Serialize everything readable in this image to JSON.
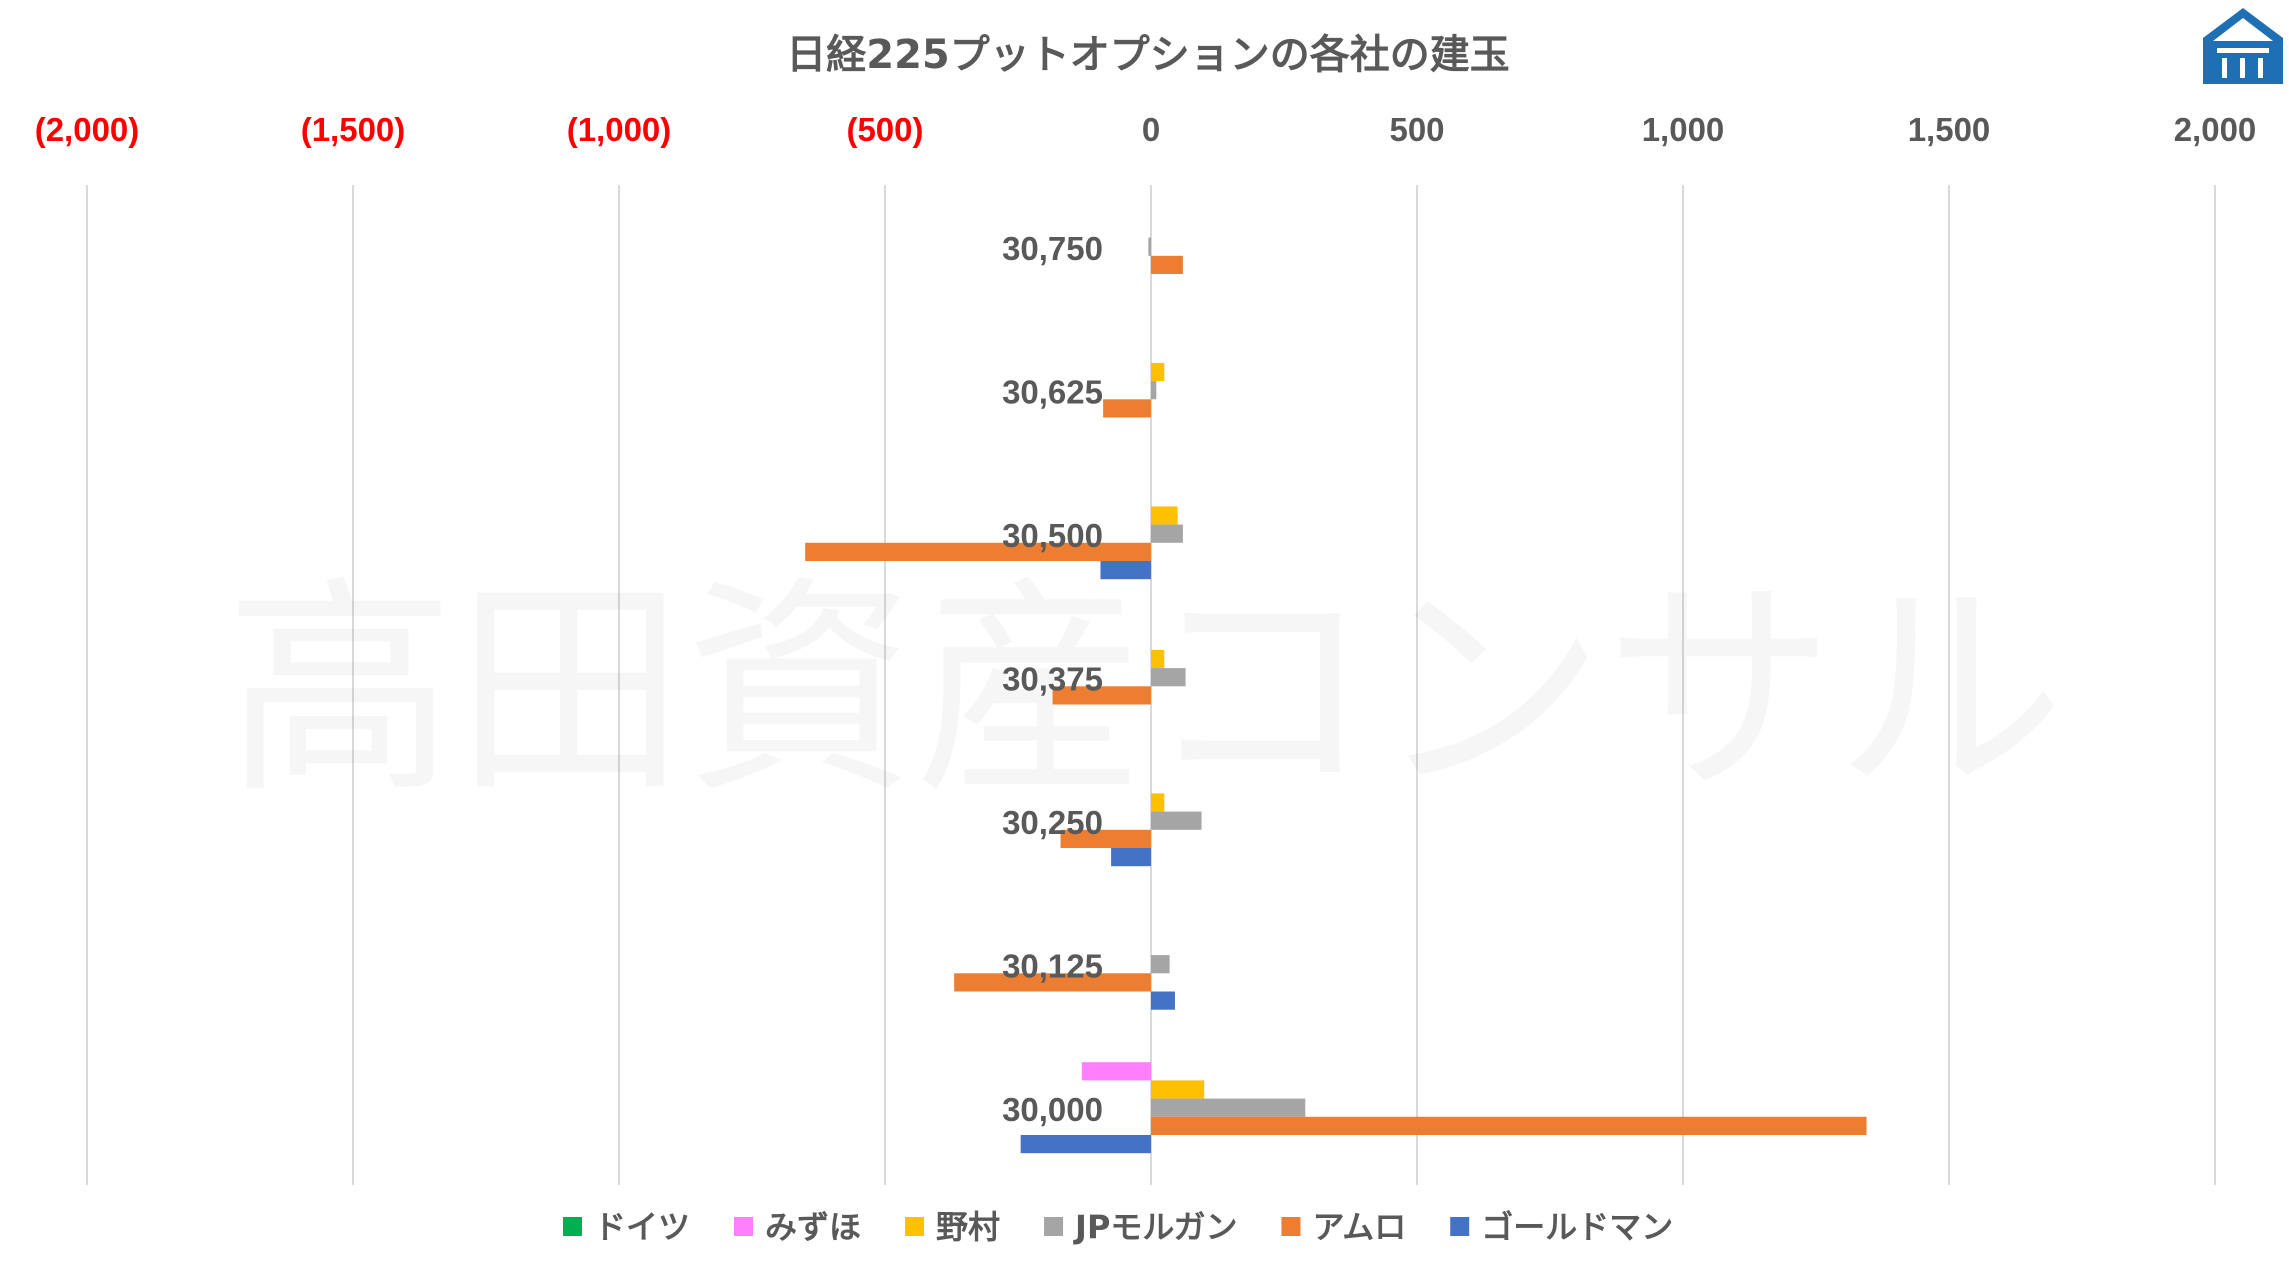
{
  "chart_data": {
    "type": "bar",
    "orientation": "horizontal",
    "title": "日経225プットオプションの各社の建玉",
    "watermark": "高田資産コンサル",
    "logo": "takata-logo-icon",
    "xlim": [
      -2000,
      2000
    ],
    "x_ticks": [
      {
        "value": -2000,
        "label": "(2,000)"
      },
      {
        "value": -1500,
        "label": "(1,500)"
      },
      {
        "value": -1000,
        "label": "(1,000)"
      },
      {
        "value": -500,
        "label": "(500)"
      },
      {
        "value": 0,
        "label": "0"
      },
      {
        "value": 500,
        "label": "500"
      },
      {
        "value": 1000,
        "label": "1,000"
      },
      {
        "value": 1500,
        "label": "1,500"
      },
      {
        "value": 2000,
        "label": "2,000"
      }
    ],
    "colors": {
      "negative_tick": "#ff0000",
      "positive_tick": "#595959",
      "gridline": "#d9d9d9",
      "logo": "#1f6fb5"
    },
    "grid": true,
    "legend_position": "bottom",
    "categories": [
      "30,750",
      "30,625",
      "30,500",
      "30,375",
      "30,250",
      "30,125",
      "30,000"
    ],
    "series": [
      {
        "name": "ドイツ",
        "color": "#00b050",
        "values": [
          0,
          0,
          0,
          0,
          0,
          0,
          0
        ]
      },
      {
        "name": "みずほ",
        "color": "#ff7fff",
        "values": [
          0,
          0,
          0,
          0,
          0,
          0,
          -130
        ]
      },
      {
        "name": "野村",
        "color": "#ffc000",
        "values": [
          0,
          25,
          50,
          25,
          25,
          0,
          100
        ]
      },
      {
        "name": "JPモルガン",
        "color": "#a5a5a5",
        "values": [
          -5,
          10,
          60,
          65,
          95,
          35,
          290
        ]
      },
      {
        "name": "アムロ",
        "color": "#ed7d31",
        "values": [
          60,
          -90,
          -650,
          -185,
          -170,
          -370,
          1345
        ]
      },
      {
        "name": "ゴールドマン",
        "color": "#4472c4",
        "values": [
          0,
          0,
          -95,
          0,
          -75,
          45,
          -245
        ]
      }
    ]
  }
}
